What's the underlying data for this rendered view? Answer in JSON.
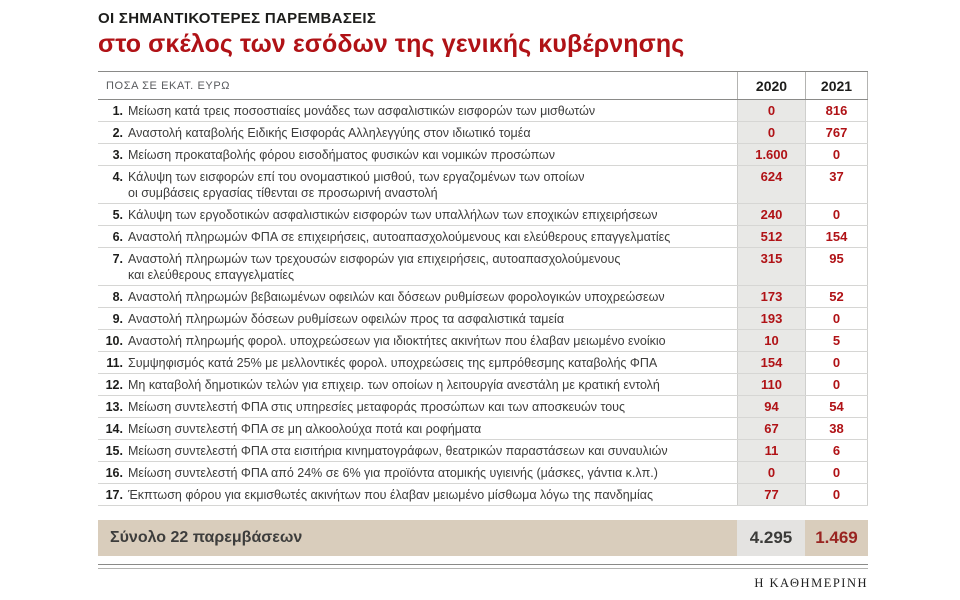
{
  "header": {
    "kicker": "ΟΙ ΣΗΜΑΝΤΙΚΟΤΕΡΕΣ ΠΑΡΕΜΒΑΣΕΙΣ",
    "title": "στο σκέλος των εσόδων της γενικής κυβέρνησης"
  },
  "table": {
    "unit_label": "ΠΟΣΑ ΣΕ ΕΚΑΤ. ΕΥΡΩ",
    "columns": [
      "2020",
      "2021"
    ],
    "rows": [
      {
        "num": "1.",
        "lines": [
          "Μείωση κατά τρεις ποσοστιαίες μονάδες των ασφαλιστικών εισφορών των μισθωτών"
        ],
        "v2020": "0",
        "v2021": "816"
      },
      {
        "num": "2.",
        "lines": [
          "Αναστολή καταβολής Ειδικής Εισφοράς Αλληλεγγύης στον ιδιωτικό τομέα"
        ],
        "v2020": "0",
        "v2021": "767"
      },
      {
        "num": "3.",
        "lines": [
          "Μείωση προκαταβολής φόρου εισοδήματος φυσικών και νομικών προσώπων"
        ],
        "v2020": "1.600",
        "v2021": "0"
      },
      {
        "num": "4.",
        "lines": [
          "Κάλυψη των εισφορών επί του ονομαστικού μισθού, των εργαζομένων των οποίων",
          "οι συμβάσεις εργασίας τίθενται σε προσωρινή αναστολή"
        ],
        "v2020": "624",
        "v2021": "37"
      },
      {
        "num": "5.",
        "lines": [
          "Κάλυψη των εργοδοτικών ασφαλιστικών εισφορών των υπαλλήλων των εποχικών επιχειρήσεων"
        ],
        "v2020": "240",
        "v2021": "0"
      },
      {
        "num": "6.",
        "lines": [
          "Αναστολή πληρωμών ΦΠΑ σε επιχειρήσεις, αυτοαπασχολούμενους και ελεύθερους επαγγελματίες"
        ],
        "v2020": "512",
        "v2021": "154"
      },
      {
        "num": "7.",
        "lines": [
          "Αναστολή πληρωμών των τρεχουσών εισφορών για επιχειρήσεις, αυτοαπασχολούμενους",
          "και ελεύθερους επαγγελματίες"
        ],
        "v2020": "315",
        "v2021": "95"
      },
      {
        "num": "8.",
        "lines": [
          "Αναστολή πληρωμών βεβαιωμένων οφειλών και δόσεων ρυθμίσεων φορολογικών υποχρεώσεων"
        ],
        "v2020": "173",
        "v2021": "52"
      },
      {
        "num": "9.",
        "lines": [
          "Αναστολή πληρωμών δόσεων ρυθμίσεων οφειλών προς τα ασφαλιστικά ταμεία"
        ],
        "v2020": "193",
        "v2021": "0"
      },
      {
        "num": "10.",
        "lines": [
          "Αναστολή πληρωμής φορολ. υποχρεώσεων για ιδιοκτήτες ακινήτων που έλαβαν μειωμένο ενοίκιο"
        ],
        "v2020": "10",
        "v2021": "5"
      },
      {
        "num": "11.",
        "lines": [
          "Συμψηφισμός κατά 25% με μελλοντικές φορολ. υποχρεώσεις της εμπρόθεσμης καταβολής ΦΠΑ"
        ],
        "v2020": "154",
        "v2021": "0"
      },
      {
        "num": "12.",
        "lines": [
          "Μη καταβολή δημοτικών τελών για επιχειρ. των οποίων η λειτουργία ανεστάλη με κρατική εντολή"
        ],
        "v2020": "110",
        "v2021": "0"
      },
      {
        "num": "13.",
        "lines": [
          "Μείωση συντελεστή ΦΠΑ στις υπηρεσίες μεταφοράς προσώπων και των αποσκευών τους"
        ],
        "v2020": "94",
        "v2021": "54"
      },
      {
        "num": "14.",
        "lines": [
          "Μείωση συντελεστή ΦΠΑ σε μη αλκοολούχα ποτά και ροφήματα"
        ],
        "v2020": "67",
        "v2021": "38"
      },
      {
        "num": "15.",
        "lines": [
          "Μείωση συντελεστή ΦΠΑ στα εισιτήρια κινηματογράφων, θεατρικών παραστάσεων και συναυλιών"
        ],
        "v2020": "11",
        "v2021": "6"
      },
      {
        "num": "16.",
        "lines": [
          "Μείωση συντελεστή ΦΠΑ από 24% σε 6% για προϊόντα ατομικής υγιεινής (μάσκες, γάντια κ.λπ.)"
        ],
        "v2020": "0",
        "v2021": "0"
      },
      {
        "num": "17.",
        "lines": [
          "Έκπτωση φόρου για εκμισθωτές ακινήτων που έλαβαν μειωμένο μίσθωμα λόγω της πανδημίας"
        ],
        "v2020": "77",
        "v2021": "0"
      }
    ],
    "total": {
      "label": "Σύνολο 22 παρεμβάσεων",
      "v2020": "4.295",
      "v2021": "1.469"
    }
  },
  "footer": {
    "brand": "Η ΚΑΘΗΜΕΡΙΝΗ"
  },
  "colors": {
    "accent_red": "#b01216",
    "value_red": "#b01216",
    "total_2021_red": "#992420",
    "col_2020_bg": "#e8e8e6",
    "total_bg": "#d9cdbc"
  },
  "chart_data": {
    "type": "table",
    "title": "ΟΙ ΣΗΜΑΝΤΙΚΟΤΕΡΕΣ ΠΑΡΕΜΒΑΣΕΙΣ στο σκέλος των εσόδων της γενικής κυβέρνησης",
    "unit": "ΠΟΣΑ ΣΕ ΕΚΑΤ. ΕΥΡΩ",
    "columns": [
      "2020",
      "2021"
    ],
    "rows": [
      {
        "label": "Μείωση κατά τρεις ποσοστιαίες μονάδες των ασφαλιστικών εισφορών των μισθωτών",
        "y2020": 0,
        "y2021": 816
      },
      {
        "label": "Αναστολή καταβολής Ειδικής Εισφοράς Αλληλεγγύης στον ιδιωτικό τομέα",
        "y2020": 0,
        "y2021": 767
      },
      {
        "label": "Μείωση προκαταβολής φόρου εισοδήματος φυσικών και νομικών προσώπων",
        "y2020": 1600,
        "y2021": 0
      },
      {
        "label": "Κάλυψη των εισφορών επί του ονομαστικού μισθού, των εργαζομένων των οποίων οι συμβάσεις εργασίας τίθενται σε προσωρινή αναστολή",
        "y2020": 624,
        "y2021": 37
      },
      {
        "label": "Κάλυψη των εργοδοτικών ασφαλιστικών εισφορών των υπαλλήλων των εποχικών επιχειρήσεων",
        "y2020": 240,
        "y2021": 0
      },
      {
        "label": "Αναστολή πληρωμών ΦΠΑ σε επιχειρήσεις, αυτοαπασχολούμενους και ελεύθερους επαγγελματίες",
        "y2020": 512,
        "y2021": 154
      },
      {
        "label": "Αναστολή πληρωμών των τρεχουσών εισφορών για επιχειρήσεις, αυτοαπασχολούμενους και ελεύθερους επαγγελματίες",
        "y2020": 315,
        "y2021": 95
      },
      {
        "label": "Αναστολή πληρωμών βεβαιωμένων οφειλών και δόσεων ρυθμίσεων φορολογικών υποχρεώσεων",
        "y2020": 173,
        "y2021": 52
      },
      {
        "label": "Αναστολή πληρωμών δόσεων ρυθμίσεων οφειλών προς τα ασφαλιστικά ταμεία",
        "y2020": 193,
        "y2021": 0
      },
      {
        "label": "Αναστολή πληρωμής φορολ. υποχρεώσεων για ιδιοκτήτες ακινήτων που έλαβαν μειωμένο ενοίκιο",
        "y2020": 10,
        "y2021": 5
      },
      {
        "label": "Συμψηφισμός κατά 25% με μελλοντικές φορολ. υποχρεώσεις της εμπρόθεσμης καταβολής ΦΠΑ",
        "y2020": 154,
        "y2021": 0
      },
      {
        "label": "Μη καταβολή δημοτικών τελών για επιχειρ. των οποίων η λειτουργία ανεστάλη με κρατική εντολή",
        "y2020": 110,
        "y2021": 0
      },
      {
        "label": "Μείωση συντελεστή ΦΠΑ στις υπηρεσίες μεταφοράς προσώπων και των αποσκευών τους",
        "y2020": 94,
        "y2021": 54
      },
      {
        "label": "Μείωση συντελεστή ΦΠΑ σε μη αλκοολούχα ποτά και ροφήματα",
        "y2020": 67,
        "y2021": 38
      },
      {
        "label": "Μείωση συντελεστή ΦΠΑ στα εισιτήρια κινηματογράφων, θεατρικών παραστάσεων και συναυλιών",
        "y2020": 11,
        "y2021": 6
      },
      {
        "label": "Μείωση συντελεστή ΦΠΑ από 24% σε 6% για προϊόντα ατομικής υγιεινής (μάσκες, γάντια κ.λπ.)",
        "y2020": 0,
        "y2021": 0
      },
      {
        "label": "Έκπτωση φόρου για εκμισθωτές ακινήτων που έλαβαν μειωμένο μίσθωμα λόγω της πανδημίας",
        "y2020": 77,
        "y2021": 0
      }
    ],
    "total": {
      "label": "Σύνολο 22 παρεμβάσεων",
      "y2020": 4295,
      "y2021": 1469
    }
  }
}
